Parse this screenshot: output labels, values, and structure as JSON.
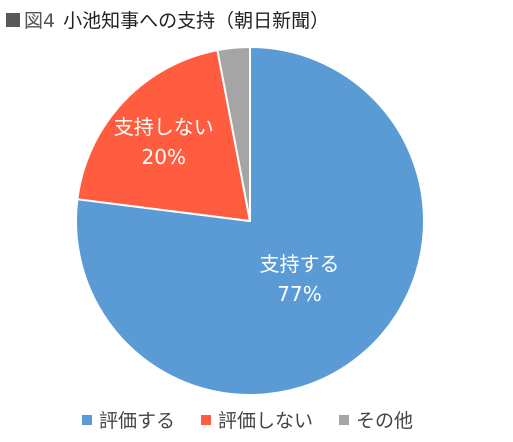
{
  "header": {
    "figure_label": "図4",
    "title": "小池知事への支持（朝日新聞）",
    "marker_color": "#595959"
  },
  "chart_data": {
    "type": "pie",
    "title": "小池知事への支持（朝日新聞）",
    "series": [
      {
        "name": "評価する",
        "slice_label": "支持する",
        "value": 77,
        "display": "77%",
        "color": "#5B9BD5"
      },
      {
        "name": "評価しない",
        "slice_label": "支持しない",
        "value": 20,
        "display": "20%",
        "color": "#FF5C40"
      },
      {
        "name": "その他",
        "slice_label": "",
        "value": 3,
        "display": "",
        "color": "#A5A5A5"
      }
    ],
    "legend_position": "bottom"
  }
}
